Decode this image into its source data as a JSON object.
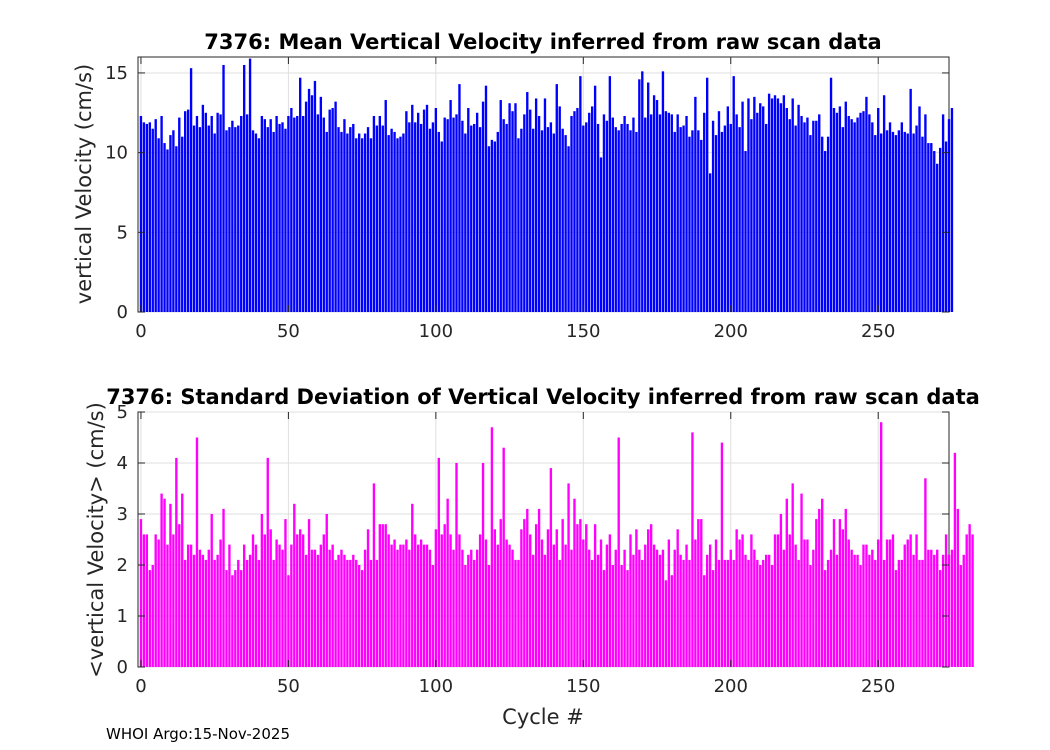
{
  "footer": "WHOI Argo:15-Nov-2025",
  "chart_data": [
    {
      "type": "bar",
      "title": "7376: Mean Vertical Velocity inferred from raw scan data",
      "xlabel": "",
      "ylabel": "vertical Velocity (cm/s)",
      "xlim": [
        -1,
        274
      ],
      "ylim": [
        0,
        16
      ],
      "xticks": [
        0,
        50,
        100,
        150,
        200,
        250
      ],
      "yticks": [
        0,
        5,
        10,
        15
      ],
      "color": "#0000ff",
      "grid": true,
      "x_start": 0,
      "values": [
        12.3,
        11.9,
        11.8,
        11.9,
        11.5,
        12.1,
        10.9,
        12.3,
        10.6,
        10.2,
        11.1,
        11.4,
        10.4,
        12.2,
        11,
        12.6,
        12.7,
        15.3,
        11.7,
        12.3,
        11.6,
        13,
        12.5,
        11.7,
        12.3,
        11.2,
        12.5,
        12.4,
        15.5,
        11.4,
        11.6,
        12,
        11.6,
        11.7,
        12.3,
        15.5,
        12.4,
        15.9,
        11.4,
        11.2,
        10.9,
        12.3,
        12.1,
        11.6,
        12.1,
        11.3,
        12.3,
        11.8,
        11.9,
        11.5,
        12.3,
        12.8,
        12.2,
        12.3,
        14.7,
        12.3,
        13.2,
        14,
        13.6,
        14.5,
        12.4,
        13.5,
        12.2,
        11.3,
        12.7,
        12.8,
        13.2,
        11.6,
        11.3,
        12.1,
        11.2,
        11.6,
        11.8,
        10.9,
        11.2,
        10.9,
        11.2,
        11.6,
        10.9,
        12.3,
        11.7,
        12.3,
        11.7,
        13.3,
        11.1,
        11.5,
        11.3,
        10.9,
        11,
        11.2,
        12.6,
        11.9,
        13,
        11.9,
        12.5,
        11.8,
        12.7,
        13,
        11.5,
        11.9,
        12.8,
        11.3,
        10.7,
        12.2,
        12.1,
        13.3,
        12.2,
        12.4,
        14.3,
        12,
        11.2,
        12.8,
        11.7,
        11.8,
        12.5,
        11.6,
        13.2,
        14.2,
        10.4,
        10.8,
        10.7,
        11.3,
        13.3,
        12.1,
        11.8,
        13.1,
        12.6,
        13.1,
        10.9,
        11.5,
        12.4,
        13.8,
        12.7,
        11.5,
        13.4,
        12.3,
        11.4,
        13.4,
        11.6,
        11.9,
        11.2,
        14.3,
        12.9,
        11.5,
        11.1,
        10.4,
        12.3,
        12.6,
        12.8,
        14.8,
        11.7,
        11.9,
        12.5,
        12.9,
        14.2,
        11.8,
        9.7,
        12.4,
        12,
        14.8,
        12.2,
        11.6,
        11.4,
        11.8,
        12.3,
        11.8,
        11.4,
        12.2,
        11.3,
        14.6,
        15.1,
        12.2,
        14.4,
        12.4,
        13.6,
        13.3,
        12.4,
        15.1,
        12.6,
        12.5,
        12.4,
        11.3,
        12.4,
        11.6,
        11.7,
        12.3,
        11,
        11.4,
        13.5,
        11.4,
        10.8,
        12.5,
        14.7,
        8.7,
        12,
        11.1,
        12.6,
        11.3,
        11.7,
        12.9,
        11.8,
        14.8,
        12.4,
        11.6,
        13.2,
        10.1,
        13.4,
        12.1,
        13.5,
        12.5,
        13.1,
        12.9,
        11.8,
        13.7,
        13.4,
        13.6,
        13.4,
        13.1,
        13.6,
        12.8,
        12.1,
        13.4,
        11.7,
        13,
        12.3,
        11.9,
        12.2,
        11.1,
        12,
        12,
        12.4,
        11,
        10.1,
        11,
        14.7,
        12.8,
        12.5,
        12.9,
        11.6,
        13.2,
        12.3,
        12.1,
        11.9,
        12.2,
        12.5,
        12.6,
        13.5,
        12.4,
        11.9,
        11.1,
        12.8,
        11.2,
        13.6,
        11.4,
        11.9,
        11.3,
        11.1,
        11.4,
        11.9,
        11.3,
        11.2,
        14,
        11.2,
        11.7,
        12.9,
        11,
        12.4,
        10.6,
        10.6,
        10.1,
        9.3,
        10.3,
        12.4,
        10.7,
        12.1,
        12.8
      ]
    },
    {
      "type": "bar",
      "title": "7376: Standard Deviation of Vertical Velocity inferred from raw scan data",
      "xlabel": "Cycle #",
      "ylabel": "<vertical Velocity> (cm/s)",
      "xlim": [
        -1,
        274
      ],
      "ylim": [
        0,
        5
      ],
      "xticks": [
        0,
        50,
        100,
        150,
        200,
        250
      ],
      "yticks": [
        0,
        1,
        2,
        3,
        4,
        5
      ],
      "color": "#ff00ff",
      "grid": true,
      "x_start": 0,
      "values": [
        2.9,
        2.6,
        2.6,
        1.9,
        2.0,
        2.6,
        2.5,
        3.4,
        3.3,
        2.4,
        3.2,
        2.6,
        4.1,
        2.8,
        3.4,
        2.1,
        2.4,
        2.4,
        2.2,
        4.5,
        2.3,
        2.2,
        2.1,
        2.3,
        3.0,
        2.1,
        2.2,
        2.5,
        3.1,
        1.9,
        2.4,
        1.8,
        1.9,
        2.1,
        1.9,
        2.4,
        2.1,
        2.2,
        2.6,
        2.4,
        2.1,
        3.0,
        2.6,
        4.1,
        2.7,
        2.1,
        2.5,
        2.4,
        2.3,
        2.9,
        1.8,
        2.4,
        3.2,
        2.6,
        2.7,
        2.6,
        2.2,
        2.9,
        2.3,
        2.3,
        2.2,
        2.4,
        2.6,
        3.0,
        2.3,
        2.4,
        2.1,
        2.2,
        2.3,
        2.2,
        2.1,
        2.1,
        2.2,
        2.1,
        2.0,
        1.9,
        2.3,
        2.7,
        2.1,
        3.6,
        2.1,
        2.8,
        2.8,
        2.8,
        2.6,
        2.4,
        2.5,
        2.3,
        2.4,
        2.4,
        2.5,
        2.3,
        3.2,
        2.6,
        2.4,
        2.5,
        2.4,
        2.4,
        2.3,
        2.0,
        2.7,
        4.1,
        2.6,
        2.8,
        3.3,
        2.6,
        2.3,
        4.0,
        2.6,
        2.3,
        2.0,
        2.2,
        2.3,
        2.1,
        2.3,
        2.6,
        4.0,
        2.5,
        2.0,
        4.7,
        2.7,
        2.4,
        2.9,
        4.3,
        2.5,
        2.4,
        2.3,
        2.1,
        2.1,
        2.7,
        2.9,
        3.1,
        2.6,
        2.2,
        2.8,
        3.1,
        2.5,
        2.2,
        2.7,
        3.9,
        2.4,
        2.7,
        2.1,
        2.9,
        2.4,
        3.6,
        2.3,
        3.3,
        2.8,
        2.9,
        2.5,
        2.8,
        2.3,
        2.1,
        2.8,
        2.2,
        2.5,
        1.9,
        2.4,
        2.6,
        2.0,
        2.3,
        4.5,
        2.0,
        2.3,
        1.9,
        2.6,
        2.2,
        2.7,
        2.3,
        2.1,
        2.4,
        2.7,
        2.8,
        2.4,
        2.3,
        2.2,
        2.3,
        1.7,
        2.5,
        1.8,
        2.3,
        2.7,
        2.2,
        2.1,
        2.4,
        2.1,
        4.6,
        2.5,
        2.9,
        2.9,
        1.8,
        2.2,
        2.4,
        1.9,
        2.5,
        2.1,
        4.4,
        2.1,
        2.1,
        2.3,
        2.1,
        2.7,
        2.5,
        2.6,
        2.2,
        2.1,
        2.6,
        2.3,
        2.1,
        2.0,
        2.1,
        2.2,
        2.2,
        2.0,
        2.6,
        2.6,
        3.0,
        2.3,
        3.3,
        2.6,
        3.6,
        2.4,
        2.1,
        3.4,
        2.5,
        2.5,
        2.0,
        2.3,
        2.9,
        3.1,
        3.3,
        1.9,
        2.1,
        2.3,
        2.9,
        2.2,
        2.9,
        2.7,
        3.1,
        2.5,
        2.3,
        2.2,
        2.2,
        2.0,
        2.4,
        2.4,
        2.2,
        2.3,
        2.1,
        2.5,
        4.8,
        2.1,
        2.5,
        2.5,
        2.6,
        1.9,
        2.1,
        2.1,
        2.4,
        2.5,
        2.6,
        2.2,
        2.6,
        2.1,
        2.1,
        3.7,
        2.3,
        2.3,
        2.2,
        2.3,
        1.9,
        2.2,
        2.6,
        2.2,
        2.3,
        4.2,
        3.1,
        2.0,
        2.2,
        2.6,
        2.8,
        2.6
      ]
    }
  ]
}
